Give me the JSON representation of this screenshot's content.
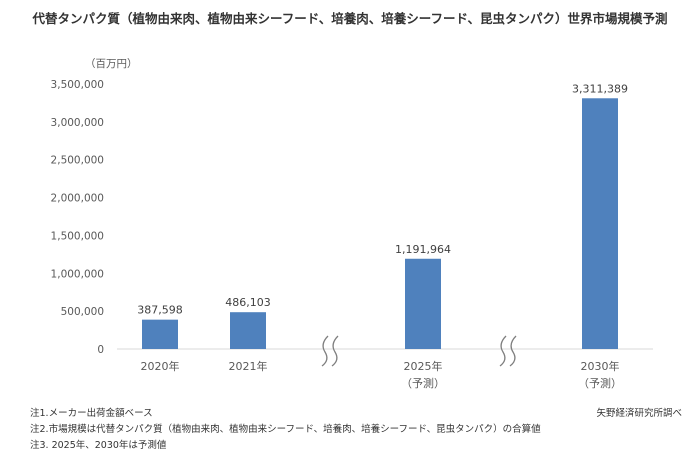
{
  "chart_data": {
    "type": "bar",
    "title": "代替タンパク質（植物由来肉、植物由来シーフード、培養肉、培養シーフード、昆虫タンパク）世界市場規模予測",
    "unit_label": "（百万円）",
    "categories": [
      {
        "label": "2020年",
        "sub": ""
      },
      {
        "label": "2021年",
        "sub": ""
      },
      {
        "label": "2025年",
        "sub": "（予測）"
      },
      {
        "label": "2030年",
        "sub": "（予測）"
      }
    ],
    "values": [
      387598,
      486103,
      1191964,
      3311389
    ],
    "data_labels": [
      "387,598",
      "486,103",
      "1,191,964",
      "3,311,389"
    ],
    "yticks": [
      "0",
      "500,000",
      "1,000,000",
      "1,500,000",
      "2,000,000",
      "2,500,000",
      "3,000,000",
      "3,500,000"
    ],
    "ylim": [
      0,
      3500000
    ],
    "bar_color": "#4f81bd",
    "axis_break_marks": true
  },
  "notes": [
    "注1.メーカー出荷金額ベース",
    "注2.市場規模は代替タンパク質（植物由来肉、植物由来シーフード、培養肉、培養シーフード、昆虫タンパク）の合算値",
    "注3. 2025年、2030年は予測値"
  ],
  "source": "矢野経済研究所調べ"
}
